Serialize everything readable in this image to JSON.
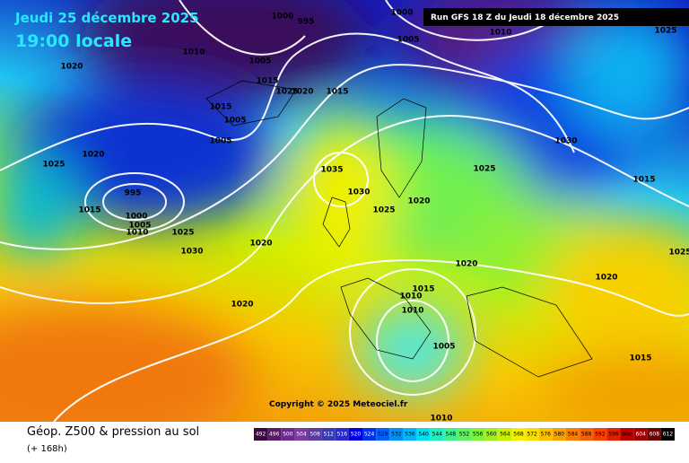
{
  "header": {
    "date": "Jeudi 25 décembre 2025",
    "time": "19:00 locale",
    "run": "Run GFS 18 Z du Jeudi 18 décembre 2025"
  },
  "copyright": "Copyright © 2025 Meteociel.fr",
  "footer": {
    "title": "Géop. Z500 & pression au sol",
    "lead": "(+ 168h)"
  },
  "isobar_labels": [
    1000,
    995,
    1000,
    1005,
    1010,
    1025,
    1020,
    1010,
    1005,
    1015,
    1025,
    1020,
    1015,
    1015,
    1005,
    1005,
    1030,
    1020,
    1025,
    1035,
    1025,
    1015,
    995,
    1030,
    1020,
    1015,
    1000,
    1025,
    1005,
    1010,
    1025,
    1020,
    1030,
    1020,
    1025,
    1020,
    1015,
    1010,
    1020,
    1010,
    1005,
    1015,
    1010
  ],
  "colorbar": {
    "labels": [
      492,
      496,
      500,
      504,
      508,
      512,
      516,
      520,
      524,
      528,
      532,
      536,
      540,
      544,
      548,
      552,
      556,
      560,
      564,
      568,
      572,
      576,
      580,
      584,
      588,
      592,
      596,
      600,
      604,
      608,
      612
    ],
    "colors": [
      "#3a0a3a",
      "#5a1a6a",
      "#6a2a8a",
      "#7a3aa0",
      "#5a3aa0",
      "#3a3ab0",
      "#2a2ac8",
      "#0000e0",
      "#0030f0",
      "#0060f8",
      "#0090f8",
      "#00b8f8",
      "#00e0f0",
      "#20f0c0",
      "#40f090",
      "#60f060",
      "#80f040",
      "#a0f020",
      "#c8f000",
      "#f0f000",
      "#f8e000",
      "#f8c000",
      "#f8a000",
      "#f88000",
      "#f86000",
      "#f84000",
      "#e02000",
      "#c00000",
      "#a00000",
      "#700000",
      "#000000"
    ]
  }
}
